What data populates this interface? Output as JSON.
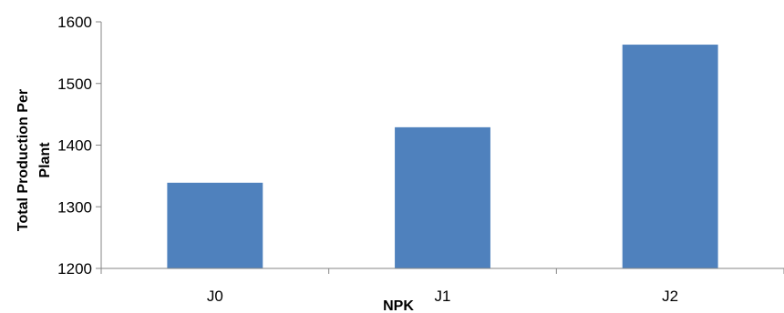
{
  "chart_data": {
    "type": "bar",
    "categories": [
      "J0",
      "J1",
      "J2"
    ],
    "values": [
      1339,
      1429,
      1563
    ],
    "ylim": [
      1200,
      1600
    ],
    "yticks": [
      1200,
      1300,
      1400,
      1500,
      1600
    ],
    "xlabel": "NPK",
    "ylabel_lines": [
      "Total Production Per",
      "Plant"
    ],
    "grid": false,
    "legend": "none",
    "bar_color": "#4f81bd",
    "axis_color": "#868686"
  }
}
